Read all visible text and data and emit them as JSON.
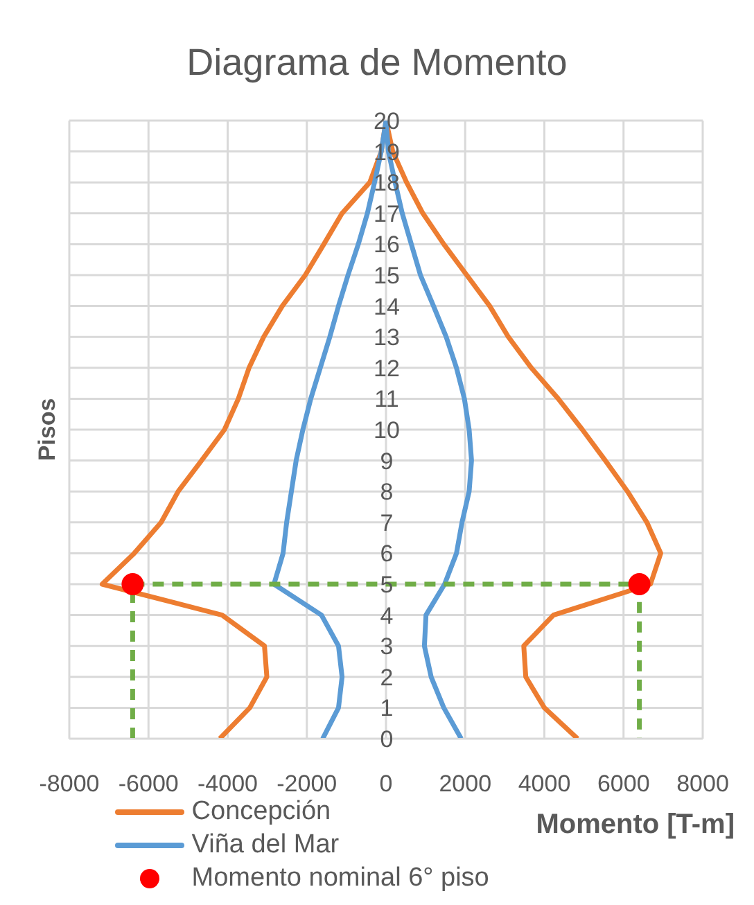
{
  "chart_data": {
    "type": "line",
    "title": "Diagrama de Momento",
    "xlabel": "Momento [T-m]",
    "ylabel": "Pisos",
    "xlim": [
      -8000,
      8000
    ],
    "xticks": [
      -8000,
      -6000,
      -4000,
      -2000,
      0,
      2000,
      4000,
      6000,
      8000
    ],
    "ylim": [
      0,
      20
    ],
    "yticks": [
      0,
      1,
      2,
      3,
      4,
      5,
      6,
      7,
      8,
      9,
      10,
      11,
      12,
      13,
      14,
      15,
      16,
      17,
      18,
      19,
      20
    ],
    "grid": true,
    "legend": "bottom left",
    "marker": "none",
    "line_style": "solid",
    "series": [
      {
        "name": "Concepción",
        "color": "#ed7d31",
        "x": [
          -4200,
          -3440,
          -3010,
          -3070,
          -4140,
          -7170,
          -6360,
          -5680,
          -5250,
          -4660,
          -4080,
          -3730,
          -3460,
          -3090,
          -2620,
          -2040,
          -1570,
          -1110,
          -410,
          -120,
          0,
          170,
          520,
          930,
          1460,
          2040,
          2620,
          3090,
          3670,
          4350,
          4960,
          5540,
          6100,
          6590,
          6940,
          6680,
          4230,
          3480,
          3530,
          4000,
          4840
        ],
        "values": [
          0,
          1,
          2,
          3,
          4,
          5,
          6,
          7,
          8,
          9,
          10,
          11,
          12,
          13,
          14,
          15,
          16,
          17,
          18,
          19,
          20,
          19,
          18,
          17,
          16,
          15,
          14,
          13,
          12,
          11,
          10,
          9,
          8,
          7,
          6,
          5,
          4,
          3,
          2,
          1,
          0
        ]
      },
      {
        "name": "Viña del Mar",
        "color": "#5b9bd5",
        "x": [
          -1600,
          -1200,
          -1110,
          -1200,
          -1630,
          -2830,
          -2600,
          -2510,
          -2390,
          -2270,
          -2100,
          -1900,
          -1660,
          -1420,
          -1200,
          -960,
          -700,
          -470,
          -290,
          -120,
          0,
          60,
          230,
          410,
          640,
          870,
          1200,
          1520,
          1780,
          1980,
          2100,
          2160,
          2100,
          1920,
          1780,
          1480,
          1010,
          970,
          1140,
          1460,
          1900
        ],
        "values": [
          0,
          1,
          2,
          3,
          4,
          5,
          6,
          7,
          8,
          9,
          10,
          11,
          12,
          13,
          14,
          15,
          16,
          17,
          18,
          19,
          20,
          19,
          18,
          17,
          16,
          15,
          14,
          13,
          12,
          11,
          10,
          9,
          8,
          7,
          6,
          5,
          4,
          3,
          2,
          1,
          0
        ]
      },
      {
        "color": "#70ad47",
        "line_style": "dashed",
        "x": [
          -6400,
          -6400,
          6400,
          6400
        ],
        "values": [
          0,
          5,
          5,
          0
        ]
      },
      {
        "name": "Momento nominal 6° piso",
        "type": "scatter",
        "marker": "circle",
        "color": "#ff0000",
        "x": [
          -6400,
          6400
        ],
        "values": [
          5,
          5
        ]
      }
    ]
  }
}
